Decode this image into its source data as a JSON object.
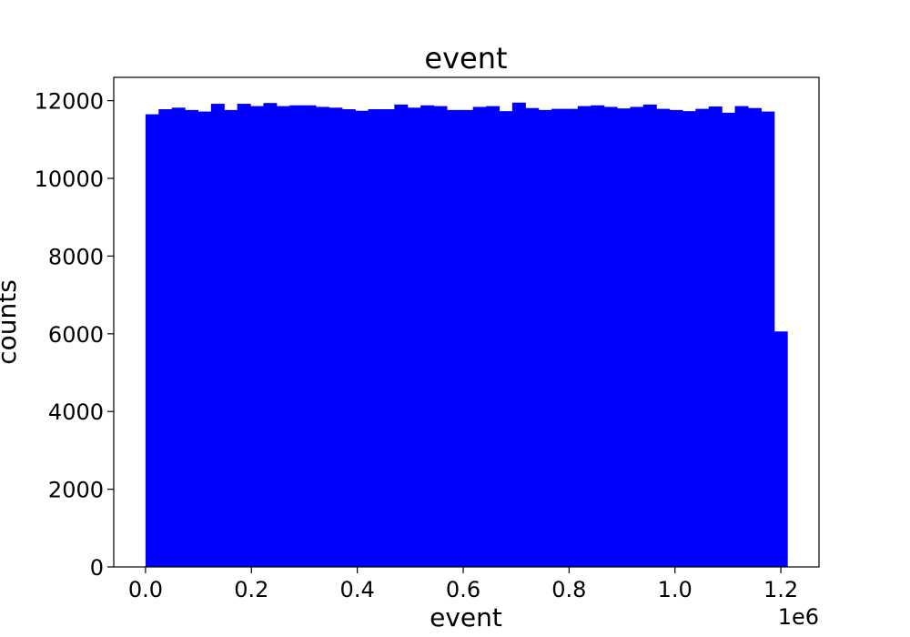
{
  "chart_data": {
    "type": "bar",
    "title": "event",
    "xlabel": "event",
    "ylabel": "counts",
    "x_offset_label": "1e6",
    "xlim": [
      -0.06,
      1.272
    ],
    "ylim": [
      0,
      12600
    ],
    "x_ticks": [
      0.0,
      0.2,
      0.4,
      0.6,
      0.8,
      1.0,
      1.2
    ],
    "x_tick_labels": [
      "0.0",
      "0.2",
      "0.4",
      "0.6",
      "0.8",
      "1.0",
      "1.2"
    ],
    "y_ticks": [
      0,
      2000,
      4000,
      6000,
      8000,
      10000,
      12000
    ],
    "y_tick_labels": [
      "0",
      "2000",
      "4000",
      "6000",
      "8000",
      "10000",
      "12000"
    ],
    "grid": false,
    "bar_color": "#0000ff",
    "bin_range": [
      0.0,
      1.212
    ],
    "values": [
      11650,
      11780,
      11820,
      11760,
      11720,
      11920,
      11760,
      11920,
      11860,
      11940,
      11860,
      11880,
      11880,
      11840,
      11820,
      11780,
      11740,
      11780,
      11780,
      11900,
      11820,
      11880,
      11860,
      11760,
      11760,
      11840,
      11860,
      11730,
      11950,
      11810,
      11760,
      11790,
      11790,
      11860,
      11880,
      11840,
      11800,
      11840,
      11900,
      11790,
      11760,
      11730,
      11790,
      11850,
      11690,
      11860,
      11810,
      11720,
      6060
    ]
  }
}
